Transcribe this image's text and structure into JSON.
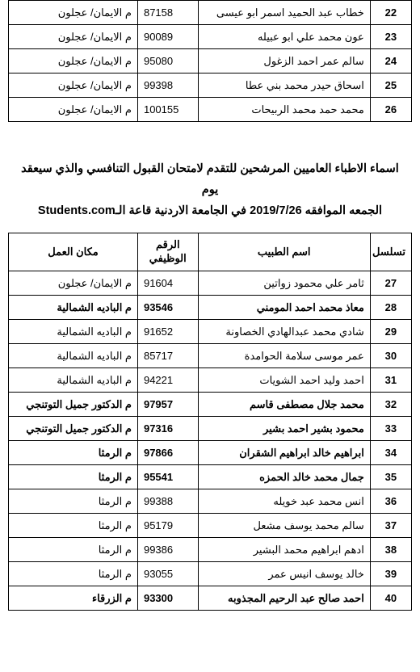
{
  "top_table": {
    "rows": [
      {
        "seq": "22",
        "name": "خطاب عبد الحميد اسمر ابو عيسى",
        "id": "87158",
        "loc": "م الايمان/ عجلون",
        "bold": false
      },
      {
        "seq": "23",
        "name": "عون محمد علي ابو عبيله",
        "id": "90089",
        "loc": "م الايمان/ عجلون",
        "bold": false
      },
      {
        "seq": "24",
        "name": "سالم عمر احمد الزغول",
        "id": "95080",
        "loc": "م الايمان/ عجلون",
        "bold": false
      },
      {
        "seq": "25",
        "name": "اسحاق حيدر محمد بني عطا",
        "id": "99398",
        "loc": "م الايمان/ عجلون",
        "bold": false
      },
      {
        "seq": "26",
        "name": "محمد حمد محمد الربيحات",
        "id": "100155",
        "loc": "م الايمان/ عجلون",
        "bold": false
      }
    ]
  },
  "section_title_line1": "اسماء الاطباء العاميين المرشحين للتقدم لامتحان القبول التنافسي والذي سيعقد يوم",
  "section_title_line2_pre": "الجمعه الموافقه 2019/7/26 في الجامعة الاردنية قاعة الـ",
  "section_title_line2_frag": "Students.com",
  "bottom_table": {
    "headers": {
      "seq": "تسلسل",
      "name": "اسم الطبيب",
      "id_l1": "الرقم",
      "id_l2": "الوظيفي",
      "loc": "مكان العمل"
    },
    "rows": [
      {
        "seq": "27",
        "name": "ثامر علي محمود زواتين",
        "id": "91604",
        "loc": "م الايمان/ عجلون",
        "bold": false
      },
      {
        "seq": "28",
        "name": "معاذ محمد احمد المومني",
        "id": "93546",
        "loc": "م الباديه الشمالية",
        "bold": true
      },
      {
        "seq": "29",
        "name": "شادي محمد عبدالهادي الخصاونة",
        "id": "91652",
        "loc": "م الباديه الشمالية",
        "bold": false
      },
      {
        "seq": "30",
        "name": "عمر موسى سلامة الحوامدة",
        "id": "85717",
        "loc": "م الباديه الشمالية",
        "bold": false
      },
      {
        "seq": "31",
        "name": "احمد وليد احمد الشويات",
        "id": "94221",
        "loc": "م الباديه الشمالية",
        "bold": false
      },
      {
        "seq": "32",
        "name": "محمد جلال مصطفى قاسم",
        "id": "97957",
        "loc": "م الدكتور جميل التوتنجي",
        "bold": true
      },
      {
        "seq": "33",
        "name": "محمود بشير احمد بشير",
        "id": "97316",
        "loc": "م الدكتور جميل التوتنجي",
        "bold": true
      },
      {
        "seq": "34",
        "name": "ابراهيم خالد ابراهيم الشقران",
        "id": "97866",
        "loc": "م الرمثا",
        "bold": true
      },
      {
        "seq": "35",
        "name": "جمال محمد خالد الحمزه",
        "id": "95541",
        "loc": "م الرمثا",
        "bold": true
      },
      {
        "seq": "36",
        "name": "انس محمد عبد خويله",
        "id": "99388",
        "loc": "م الرمثا",
        "bold": false
      },
      {
        "seq": "37",
        "name": "سالم محمد يوسف مشعل",
        "id": "95179",
        "loc": "م الرمثا",
        "bold": false
      },
      {
        "seq": "38",
        "name": "ادهم ابراهيم محمد البشير",
        "id": "99386",
        "loc": "م الرمثا",
        "bold": false
      },
      {
        "seq": "39",
        "name": "خالد يوسف انيس عمر",
        "id": "93055",
        "loc": "م الرمثا",
        "bold": false
      },
      {
        "seq": "40",
        "name": "احمد صالح عبد الرحيم المجذوبه",
        "id": "93300",
        "loc": "م الزرقاء",
        "bold": true
      }
    ]
  }
}
